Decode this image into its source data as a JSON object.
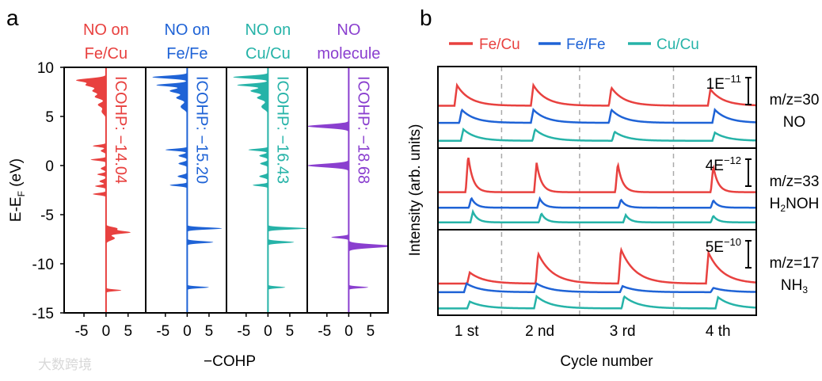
{
  "watermark": "大数跨境",
  "chart_data": [
    {
      "panel_label": "a",
      "type": "area",
      "xlabel": "−COHP",
      "ylabel": "E-E",
      "ylabel_sub": "F",
      "ylabel_unit": " (eV)",
      "ylim": [
        -15,
        10
      ],
      "xlim": [
        -9.5,
        9
      ],
      "yticks": [
        "10",
        "5",
        "0",
        "-5",
        "-10",
        "-15"
      ],
      "ytick_values": [
        10,
        5,
        0,
        -5,
        -10,
        -15
      ],
      "xticks": [
        "-5",
        "0",
        "5"
      ],
      "xtick_values": [
        -5,
        0,
        5
      ],
      "panels": [
        {
          "title1": "NO on",
          "title2": "Fe/Cu",
          "icohp": "ICOHP: −14.04",
          "color": "#e8413f",
          "peaks": [
            [
              8.7,
              -6.5,
              0.25
            ],
            [
              8.2,
              -4.5,
              0.3
            ],
            [
              7.6,
              -3,
              0.3
            ],
            [
              7.0,
              -2.5,
              0.3
            ],
            [
              6.2,
              -1.8,
              0.3
            ],
            [
              5.5,
              -1,
              0.4
            ],
            [
              2.0,
              -3,
              0.15
            ],
            [
              1.5,
              -1.2,
              0.2
            ],
            [
              0.6,
              -3.5,
              0.15
            ],
            [
              -0.3,
              -1.2,
              0.2
            ],
            [
              -0.9,
              -2,
              0.15
            ],
            [
              -1.6,
              -1.5,
              0.2
            ],
            [
              -2.1,
              -2.5,
              0.15
            ],
            [
              -2.9,
              -3,
              0.15
            ],
            [
              -6.4,
              2.5,
              0.2
            ],
            [
              -6.8,
              5.5,
              0.2
            ],
            [
              -7.4,
              2,
              0.3
            ],
            [
              -12.7,
              3.5,
              0.12
            ]
          ]
        },
        {
          "title1": "NO on",
          "title2": "Fe/Fe",
          "icohp": "ICOHP: −15.20",
          "color": "#1f63d6",
          "peaks": [
            [
              9.0,
              -8,
              0.2
            ],
            [
              8.2,
              -7,
              0.2
            ],
            [
              7.6,
              -4,
              0.3
            ],
            [
              6.9,
              -2.5,
              0.3
            ],
            [
              6.0,
              -1.5,
              0.4
            ],
            [
              1.6,
              -5,
              0.15
            ],
            [
              1.0,
              -2,
              0.2
            ],
            [
              0.2,
              -2,
              0.2
            ],
            [
              -1.1,
              -2.2,
              0.2
            ],
            [
              -2.0,
              -4,
              0.15
            ],
            [
              -6.4,
              8,
              0.15
            ],
            [
              -7.8,
              6,
              0.15
            ],
            [
              -12.4,
              5,
              0.12
            ]
          ]
        },
        {
          "title1": "NO on",
          "title2": "Cu/Cu",
          "icohp": "ICOHP: −16.43",
          "color": "#26b3a8",
          "peaks": [
            [
              9.0,
              -8,
              0.2
            ],
            [
              8.2,
              -7,
              0.2
            ],
            [
              7.6,
              -4,
              0.3
            ],
            [
              6.9,
              -2.5,
              0.3
            ],
            [
              6.0,
              -1.5,
              0.4
            ],
            [
              1.6,
              -4.5,
              0.15
            ],
            [
              1.0,
              -2,
              0.2
            ],
            [
              0.2,
              -1.8,
              0.2
            ],
            [
              -1.1,
              -2,
              0.2
            ],
            [
              -2.0,
              -3.5,
              0.15
            ],
            [
              -6.4,
              9,
              0.15
            ],
            [
              -7.8,
              6,
              0.15
            ],
            [
              -12.4,
              4,
              0.12
            ]
          ]
        },
        {
          "title1": "NO",
          "title2": "molecule",
          "icohp": "ICOHP: −18.68",
          "color": "#8a3fcf",
          "peaks": [
            [
              4.0,
              -9.5,
              0.25
            ],
            [
              0.0,
              -9.5,
              0.25
            ],
            [
              -7.3,
              -4,
              0.15
            ],
            [
              -8.2,
              10,
              0.25
            ],
            [
              -12.4,
              4.5,
              0.12
            ]
          ]
        }
      ]
    },
    {
      "panel_label": "b",
      "type": "line",
      "xlabel": "Cycle number",
      "ylabel": "Intensity (arb. units)",
      "xlim": [
        0,
        100
      ],
      "xticks": [
        "1 st",
        "2 nd",
        "3 rd",
        "4 th"
      ],
      "xtick_values": [
        9,
        32,
        58,
        88
      ],
      "cycle_boundaries": [
        20,
        44.5,
        74
      ],
      "legend": [
        {
          "name": "Fe/Cu",
          "color": "#e8413f"
        },
        {
          "name": "Fe/Fe",
          "color": "#1f63d6"
        },
        {
          "name": "Cu/Cu",
          "color": "#26b3a8"
        }
      ],
      "subplots": [
        {
          "mz": "m/z=30",
          "species": [
            {
              "t": "NO"
            }
          ],
          "scale": "1E",
          "scale_exp": "−11",
          "ylim": [
            0,
            10
          ],
          "decay": 4,
          "series": [
            {
              "name": "Fe/Cu",
              "baseline": 5.2,
              "peaks": [
                6,
                30,
                54.5,
                85.6
              ],
              "amps": [
                2.5,
                2.5,
                2.2,
                2.0
              ]
            },
            {
              "name": "Fe/Fe",
              "baseline": 3.1,
              "peaks": [
                7.5,
                30,
                54.5,
                87
              ],
              "amps": [
                1.6,
                1.6,
                1.6,
                1.6
              ]
            },
            {
              "name": "Cu/Cu",
              "baseline": 0.9,
              "peaks": [
                8,
                30.5,
                55.5,
                87
              ],
              "amps": [
                1.4,
                1.4,
                1.1,
                1.0
              ]
            }
          ]
        },
        {
          "mz": "m/z=33",
          "species": [
            {
              "t": "H"
            },
            {
              "s": "2"
            },
            {
              "t": "NOH"
            }
          ],
          "scale": "4E",
          "scale_exp": "−12",
          "ylim": [
            0,
            10
          ],
          "decay": 1.5,
          "series": [
            {
              "name": "Fe/Cu",
              "baseline": 4.6,
              "peaks": [
                9.5,
                31,
                56.5,
                86.5
              ],
              "amps": [
                4.5,
                3.6,
                3.5,
                3.2
              ]
            },
            {
              "name": "Fe/Fe",
              "baseline": 2.7,
              "peaks": [
                10.5,
                32,
                57.5,
                86.5
              ],
              "amps": [
                1.2,
                1.1,
                1.0,
                0.9
              ]
            },
            {
              "name": "Cu/Cu",
              "baseline": 0.9,
              "peaks": [
                11,
                32.5,
                59,
                86.5
              ],
              "amps": [
                1.3,
                1.1,
                0.9,
                0.8
              ]
            }
          ]
        },
        {
          "mz": "m/z=17",
          "species": [
            {
              "t": "NH"
            },
            {
              "s": "3"
            }
          ],
          "scale": "5E",
          "scale_exp": "−10",
          "ylim": [
            0,
            10
          ],
          "decay": 4.5,
          "series": [
            {
              "name": "Fe/Cu",
              "baseline": 3.7,
              "peaks": [
                10,
                31.5,
                57.5,
                85
              ],
              "amps": [
                1.3,
                3.5,
                4.0,
                3.6
              ]
            },
            {
              "name": "Fe/Fe",
              "baseline": 2.7,
              "peaks": [
                9,
                31,
                58,
                86.5
              ],
              "amps": [
                1.0,
                1.0,
                0.7,
                0.5
              ]
            },
            {
              "name": "Cu/Cu",
              "baseline": 0.8,
              "peaks": [
                10,
                31,
                58.5,
                88
              ],
              "amps": [
                0.8,
                1.4,
                1.4,
                1.3
              ]
            }
          ]
        }
      ]
    }
  ]
}
